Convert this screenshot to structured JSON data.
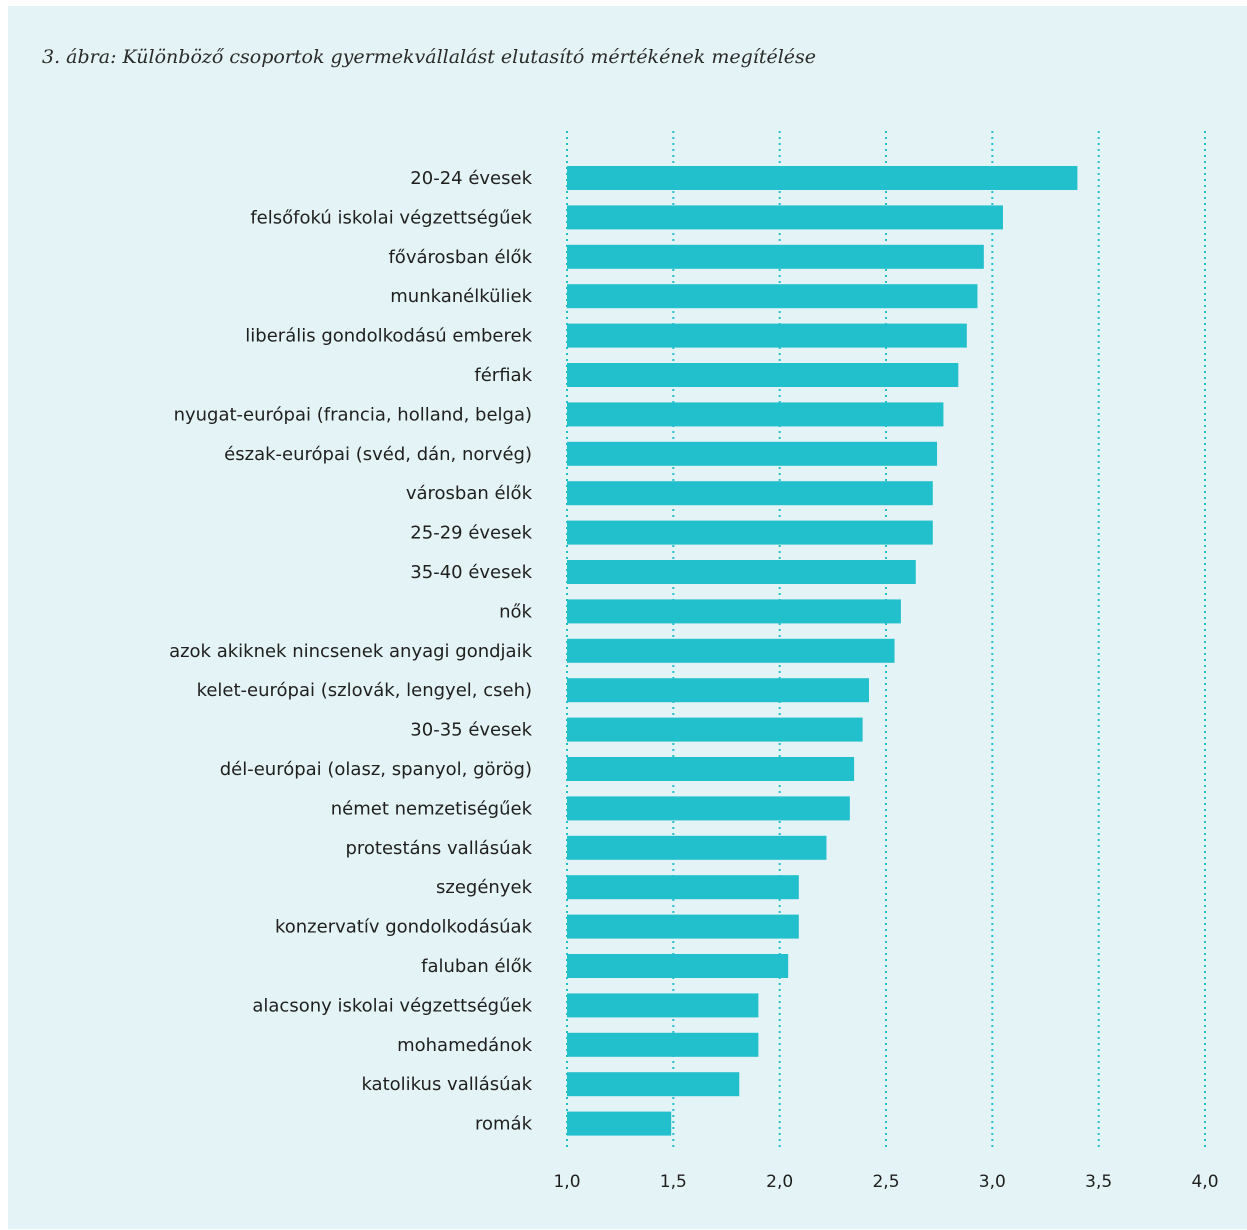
{
  "title": "3. ábra: Különböző csoportok gyermekvállalást elutasító mértékének megítélése",
  "colors": {
    "bar": "#22bfcc",
    "grid": "#22bfcc",
    "background": "#e4f3f5"
  },
  "chart_data": {
    "type": "bar",
    "orientation": "horizontal",
    "title": "3. ábra: Különböző csoportok gyermekvállalást elutasító mértékének megítélése",
    "xlim": [
      1.0,
      4.0
    ],
    "xticks": [
      "1,0",
      "1,5",
      "2,0",
      "2,5",
      "3,0",
      "3,5",
      "4,0"
    ],
    "xtick_values": [
      1.0,
      1.5,
      2.0,
      2.5,
      3.0,
      3.5,
      4.0
    ],
    "grid": "vertical dotted",
    "categories": [
      "20-24 évesek",
      "felsőfokú iskolai végzettségűek",
      "fővárosban élők",
      "munkanélküliek",
      "liberális gondolkodású emberek",
      "férfiak",
      "nyugat-európai (francia, holland, belga)",
      "észak-európai (svéd, dán, norvég)",
      "városban élők",
      "25-29 évesek",
      "35-40 évesek",
      "nők",
      "azok akiknek nincsenek anyagi gondjaik",
      "kelet-európai (szlovák, lengyel, cseh)",
      "30-35 évesek",
      "dél-európai (olasz, spanyol, görög)",
      "német nemzetiségűek",
      "protestáns vallásúak",
      "szegények",
      "konzervatív gondolkodásúak",
      "faluban élők",
      "alacsony iskolai végzettségűek",
      "mohamedánok",
      "katolikus vallásúak",
      "romák"
    ],
    "values": [
      3.4,
      3.05,
      2.96,
      2.93,
      2.88,
      2.84,
      2.77,
      2.74,
      2.72,
      2.72,
      2.64,
      2.57,
      2.54,
      2.42,
      2.39,
      2.35,
      2.33,
      2.22,
      2.09,
      2.09,
      2.04,
      1.9,
      1.9,
      1.81,
      1.49
    ]
  }
}
